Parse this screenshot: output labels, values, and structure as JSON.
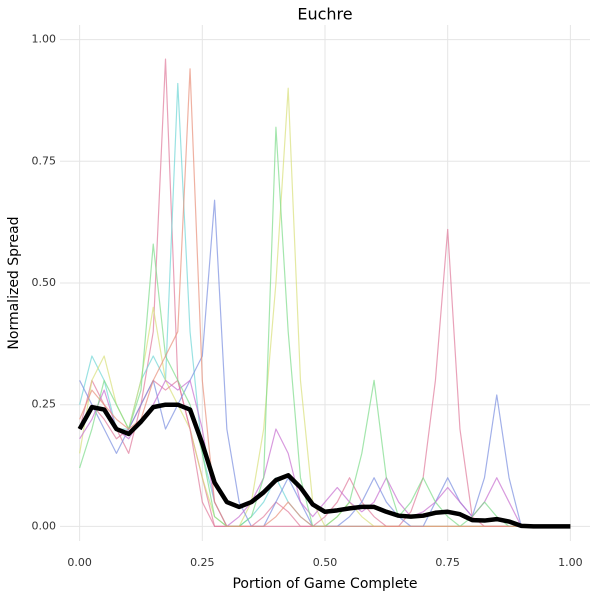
{
  "chart_data": {
    "type": "line",
    "title": "Euchre",
    "x_label": "Portion of Game Complete",
    "y_label": "Normalized Spread",
    "x": [
      0,
      0.025,
      0.05,
      0.075,
      0.1,
      0.125,
      0.15,
      0.175,
      0.2,
      0.225,
      0.25,
      0.275,
      0.3,
      0.325,
      0.35,
      0.375,
      0.4,
      0.425,
      0.45,
      0.475,
      0.5,
      0.525,
      0.55,
      0.575,
      0.6,
      0.625,
      0.65,
      0.675,
      0.7,
      0.725,
      0.75,
      0.775,
      0.8,
      0.825,
      0.85,
      0.875,
      0.9,
      0.925,
      0.95,
      0.975,
      1
    ],
    "series": [
      {
        "color": "#e07b9b",
        "values": [
          0.2,
          0.3,
          0.25,
          0.2,
          0.15,
          0.25,
          0.4,
          0.96,
          0.3,
          0.2,
          0.1,
          0,
          0,
          0,
          0,
          0,
          0,
          0,
          0,
          0,
          0,
          0,
          0,
          0,
          0,
          0,
          0,
          0,
          0,
          0,
          0,
          0,
          0,
          0,
          0,
          0,
          0,
          0,
          0,
          0,
          0
        ]
      },
      {
        "color": "#6fd6d6",
        "values": [
          0.25,
          0.35,
          0.3,
          0.2,
          0.2,
          0.3,
          0.35,
          0.3,
          0.91,
          0.4,
          0.15,
          0.05,
          0,
          0,
          0.02,
          0.05,
          0.1,
          0.05,
          0.02,
          0,
          0,
          0,
          0,
          0,
          0,
          0,
          0,
          0,
          0,
          0,
          0,
          0,
          0,
          0,
          0,
          0,
          0,
          0,
          0,
          0,
          0
        ]
      },
      {
        "color": "#d8e07a",
        "values": [
          0.15,
          0.3,
          0.35,
          0.25,
          0.2,
          0.3,
          0.45,
          0.3,
          0.25,
          0.2,
          0.1,
          0.02,
          0,
          0,
          0.05,
          0.2,
          0.5,
          0.9,
          0.3,
          0.05,
          0,
          0.02,
          0.05,
          0.02,
          0,
          0,
          0,
          0,
          0,
          0,
          0,
          0,
          0,
          0,
          0,
          0,
          0,
          0,
          0,
          0,
          0
        ]
      },
      {
        "color": "#e07b9b",
        "values": [
          0.2,
          0.25,
          0.22,
          0.18,
          0.2,
          0.25,
          0.3,
          0.28,
          0.3,
          0.2,
          0.05,
          0,
          0,
          0,
          0,
          0.02,
          0.05,
          0.03,
          0,
          0,
          0.02,
          0.05,
          0.1,
          0.05,
          0.02,
          0,
          0,
          0.03,
          0.1,
          0.3,
          0.61,
          0.2,
          0.02,
          0,
          0,
          0,
          0,
          0,
          0,
          0,
          0
        ]
      },
      {
        "color": "#7b8fe0",
        "values": [
          0.3,
          0.25,
          0.2,
          0.15,
          0.2,
          0.25,
          0.3,
          0.2,
          0.25,
          0.3,
          0.35,
          0.67,
          0.2,
          0.05,
          0,
          0,
          0.05,
          0.1,
          0.05,
          0,
          0,
          0,
          0.02,
          0.05,
          0.1,
          0.05,
          0.02,
          0,
          0,
          0.05,
          0.1,
          0.05,
          0.02,
          0.1,
          0.27,
          0.1,
          0,
          0,
          0,
          0,
          0
        ]
      },
      {
        "color": "#c86fd0",
        "values": [
          0.18,
          0.22,
          0.28,
          0.2,
          0.18,
          0.22,
          0.25,
          0.3,
          0.28,
          0.3,
          0.2,
          0.05,
          0,
          0.02,
          0.05,
          0.1,
          0.2,
          0.15,
          0.05,
          0.02,
          0.05,
          0.08,
          0.05,
          0.03,
          0.05,
          0.1,
          0.05,
          0.02,
          0.03,
          0.05,
          0.08,
          0.05,
          0.02,
          0.05,
          0.1,
          0.05,
          0,
          0,
          0,
          0,
          0
        ]
      },
      {
        "color": "#7ddc8a",
        "values": [
          0.12,
          0.2,
          0.3,
          0.25,
          0.2,
          0.28,
          0.58,
          0.35,
          0.3,
          0.25,
          0.15,
          0.02,
          0,
          0,
          0.02,
          0.1,
          0.82,
          0.4,
          0.1,
          0,
          0,
          0.02,
          0.05,
          0.15,
          0.3,
          0.1,
          0.02,
          0.05,
          0.1,
          0.05,
          0.02,
          0,
          0.02,
          0.05,
          0.02,
          0,
          0,
          0,
          0,
          0,
          0
        ]
      },
      {
        "color": "#e8907a",
        "values": [
          0.22,
          0.28,
          0.25,
          0.22,
          0.2,
          0.22,
          0.3,
          0.35,
          0.4,
          0.94,
          0.3,
          0.05,
          0,
          0,
          0,
          0,
          0.02,
          0.05,
          0.02,
          0,
          0,
          0,
          0,
          0,
          0,
          0,
          0,
          0,
          0,
          0,
          0,
          0,
          0,
          0,
          0,
          0,
          0,
          0,
          0,
          0,
          0
        ]
      },
      {
        "color": "#000000",
        "values": [
          0.2,
          0.245,
          0.24,
          0.2,
          0.19,
          0.215,
          0.245,
          0.25,
          0.25,
          0.24,
          0.17,
          0.09,
          0.05,
          0.04,
          0.05,
          0.07,
          0.095,
          0.105,
          0.08,
          0.045,
          0.03,
          0.033,
          0.037,
          0.04,
          0.04,
          0.03,
          0.022,
          0.02,
          0.022,
          0.028,
          0.03,
          0.025,
          0.013,
          0.012,
          0.015,
          0.01,
          0.001,
          0,
          0,
          0,
          0
        ]
      }
    ],
    "xlim": [
      -0.04,
      1.04
    ],
    "ylim": [
      -0.03,
      1.03
    ],
    "xticks": [
      {
        "value": 0,
        "label": "0.00"
      },
      {
        "value": 0.25,
        "label": "0.25"
      },
      {
        "value": 0.5,
        "label": "0.50"
      },
      {
        "value": 0.75,
        "label": "0.75"
      },
      {
        "value": 1,
        "label": "1.00"
      }
    ],
    "yticks": [
      {
        "value": 0,
        "label": "0.00"
      },
      {
        "value": 0.25,
        "label": "0.25"
      },
      {
        "value": 0.5,
        "label": "0.50"
      },
      {
        "value": 0.75,
        "label": "0.75"
      },
      {
        "value": 1,
        "label": "1.00"
      }
    ],
    "grid": true
  }
}
